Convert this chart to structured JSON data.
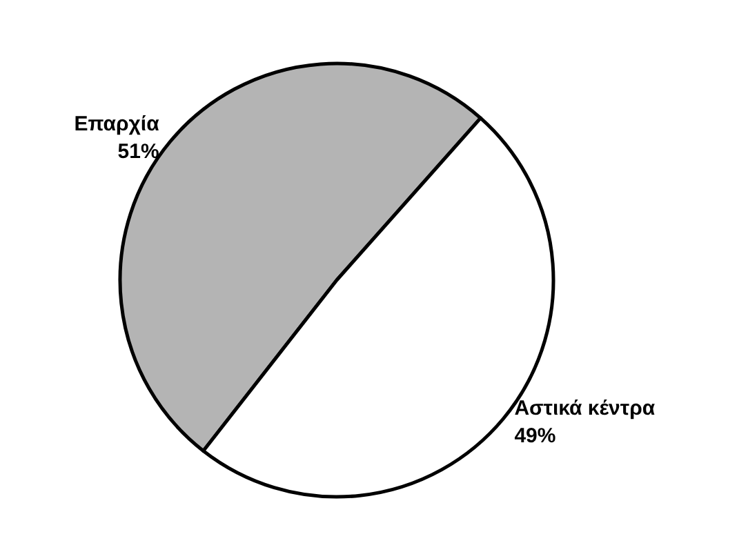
{
  "chart_data": {
    "type": "pie",
    "categories": [
      "Επαρχία",
      "Αστικά κέντρα"
    ],
    "values": [
      51,
      49
    ],
    "colors": [
      "#b4b4b4",
      "#ffffff"
    ],
    "value_labels": [
      "51%",
      "49%"
    ],
    "legend": false
  }
}
